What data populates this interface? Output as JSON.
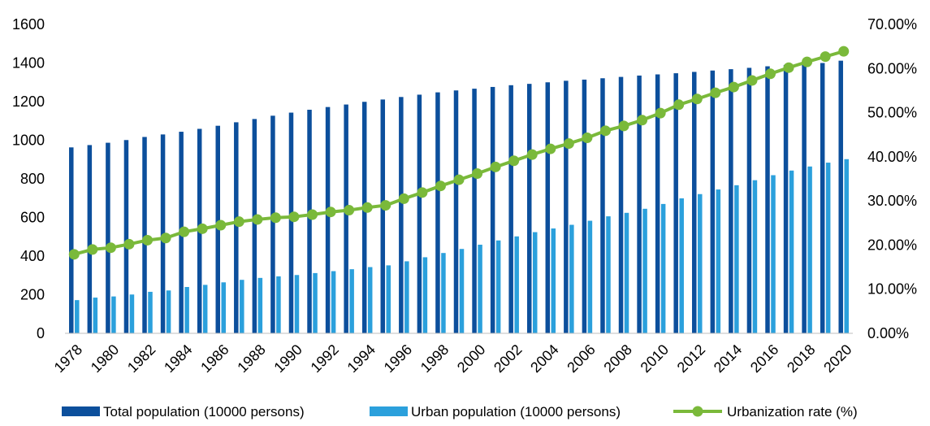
{
  "chart_data": {
    "type": "bar",
    "categories": [
      "1978",
      "1979",
      "1980",
      "1981",
      "1982",
      "1983",
      "1984",
      "1985",
      "1986",
      "1987",
      "1988",
      "1989",
      "1990",
      "1991",
      "1992",
      "1993",
      "1994",
      "1995",
      "1996",
      "1997",
      "1998",
      "1999",
      "2000",
      "2001",
      "2002",
      "2003",
      "2004",
      "2005",
      "2006",
      "2007",
      "2008",
      "2009",
      "2010",
      "2011",
      "2012",
      "2013",
      "2014",
      "2015",
      "2016",
      "2017",
      "2018",
      "2019",
      "2020"
    ],
    "x_tick_labels": [
      "1978",
      "1980",
      "1982",
      "1984",
      "1986",
      "1988",
      "1990",
      "1992",
      "1994",
      "1996",
      "1998",
      "2000",
      "2002",
      "2004",
      "2006",
      "2008",
      "2010",
      "2012",
      "2014",
      "2016",
      "2018",
      "2020"
    ],
    "ylim": [
      0,
      1600
    ],
    "y_ticks": [
      "0",
      "200",
      "400",
      "600",
      "800",
      "1000",
      "1200",
      "1400",
      "1600"
    ],
    "y2lim": [
      0,
      70
    ],
    "y2_ticks": [
      "0.00%",
      "10.00%",
      "20.00%",
      "30.00%",
      "40.00%",
      "50.00%",
      "60.00%",
      "70.00%"
    ],
    "legend_position": "bottom",
    "series": [
      {
        "name": "Total population (10000 persons)",
        "kind": "bar",
        "color": "#0c4f9c",
        "values": [
          963,
          975,
          987,
          1001,
          1017,
          1030,
          1044,
          1059,
          1075,
          1093,
          1110,
          1127,
          1143,
          1158,
          1172,
          1185,
          1199,
          1211,
          1224,
          1236,
          1248,
          1258,
          1267,
          1276,
          1285,
          1292,
          1300,
          1308,
          1314,
          1321,
          1328,
          1335,
          1341,
          1347,
          1354,
          1361,
          1368,
          1375,
          1383,
          1390,
          1395,
          1400,
          1412
        ]
      },
      {
        "name": "Urban population (10000 persons)",
        "kind": "bar",
        "color": "#2ba0dc",
        "values": [
          172,
          185,
          191,
          201,
          215,
          222,
          240,
          251,
          264,
          277,
          287,
          295,
          302,
          312,
          322,
          332,
          343,
          352,
          373,
          394,
          416,
          437,
          459,
          481,
          502,
          524,
          543,
          562,
          583,
          606,
          624,
          645,
          670,
          699,
          721,
          745,
          767,
          793,
          819,
          843,
          864,
          884,
          902
        ]
      },
      {
        "name": "Urbanization rate (%)",
        "kind": "line",
        "axis": "right",
        "color": "#7ab93a",
        "values": [
          17.9,
          19.0,
          19.4,
          20.2,
          21.1,
          21.6,
          23.0,
          23.7,
          24.5,
          25.3,
          25.8,
          26.2,
          26.4,
          26.9,
          27.5,
          27.9,
          28.5,
          29.0,
          30.5,
          31.9,
          33.4,
          34.8,
          36.2,
          37.7,
          39.1,
          40.5,
          41.8,
          43.0,
          44.3,
          45.9,
          47.0,
          48.3,
          49.9,
          51.8,
          53.1,
          54.5,
          55.8,
          57.3,
          58.8,
          60.2,
          61.5,
          62.7,
          63.9
        ]
      }
    ]
  }
}
